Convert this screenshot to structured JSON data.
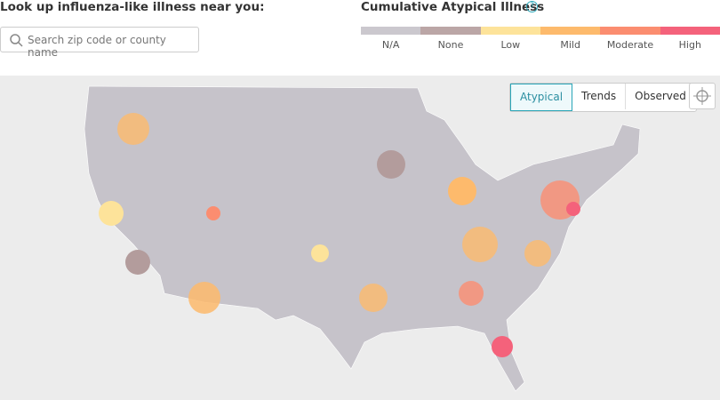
{
  "header": {
    "title": "Look up influenza-like illness near you:",
    "search_placeholder": "Search zip code or county name"
  },
  "legend": {
    "title": "Cumulative Atypical Illness",
    "help": "?",
    "items": [
      {
        "label": "N/A",
        "color": "#cbc8ce"
      },
      {
        "label": "None",
        "color": "#bba6a6"
      },
      {
        "label": "Low",
        "color": "#fde39a"
      },
      {
        "label": "Mild",
        "color": "#fdba6c"
      },
      {
        "label": "Moderate",
        "color": "#fb8d70"
      },
      {
        "label": "High",
        "color": "#f4627b"
      }
    ]
  },
  "map_controls": {
    "tabs": [
      "Atypical",
      "Trends",
      "Observed"
    ],
    "active_tab": 0
  }
}
